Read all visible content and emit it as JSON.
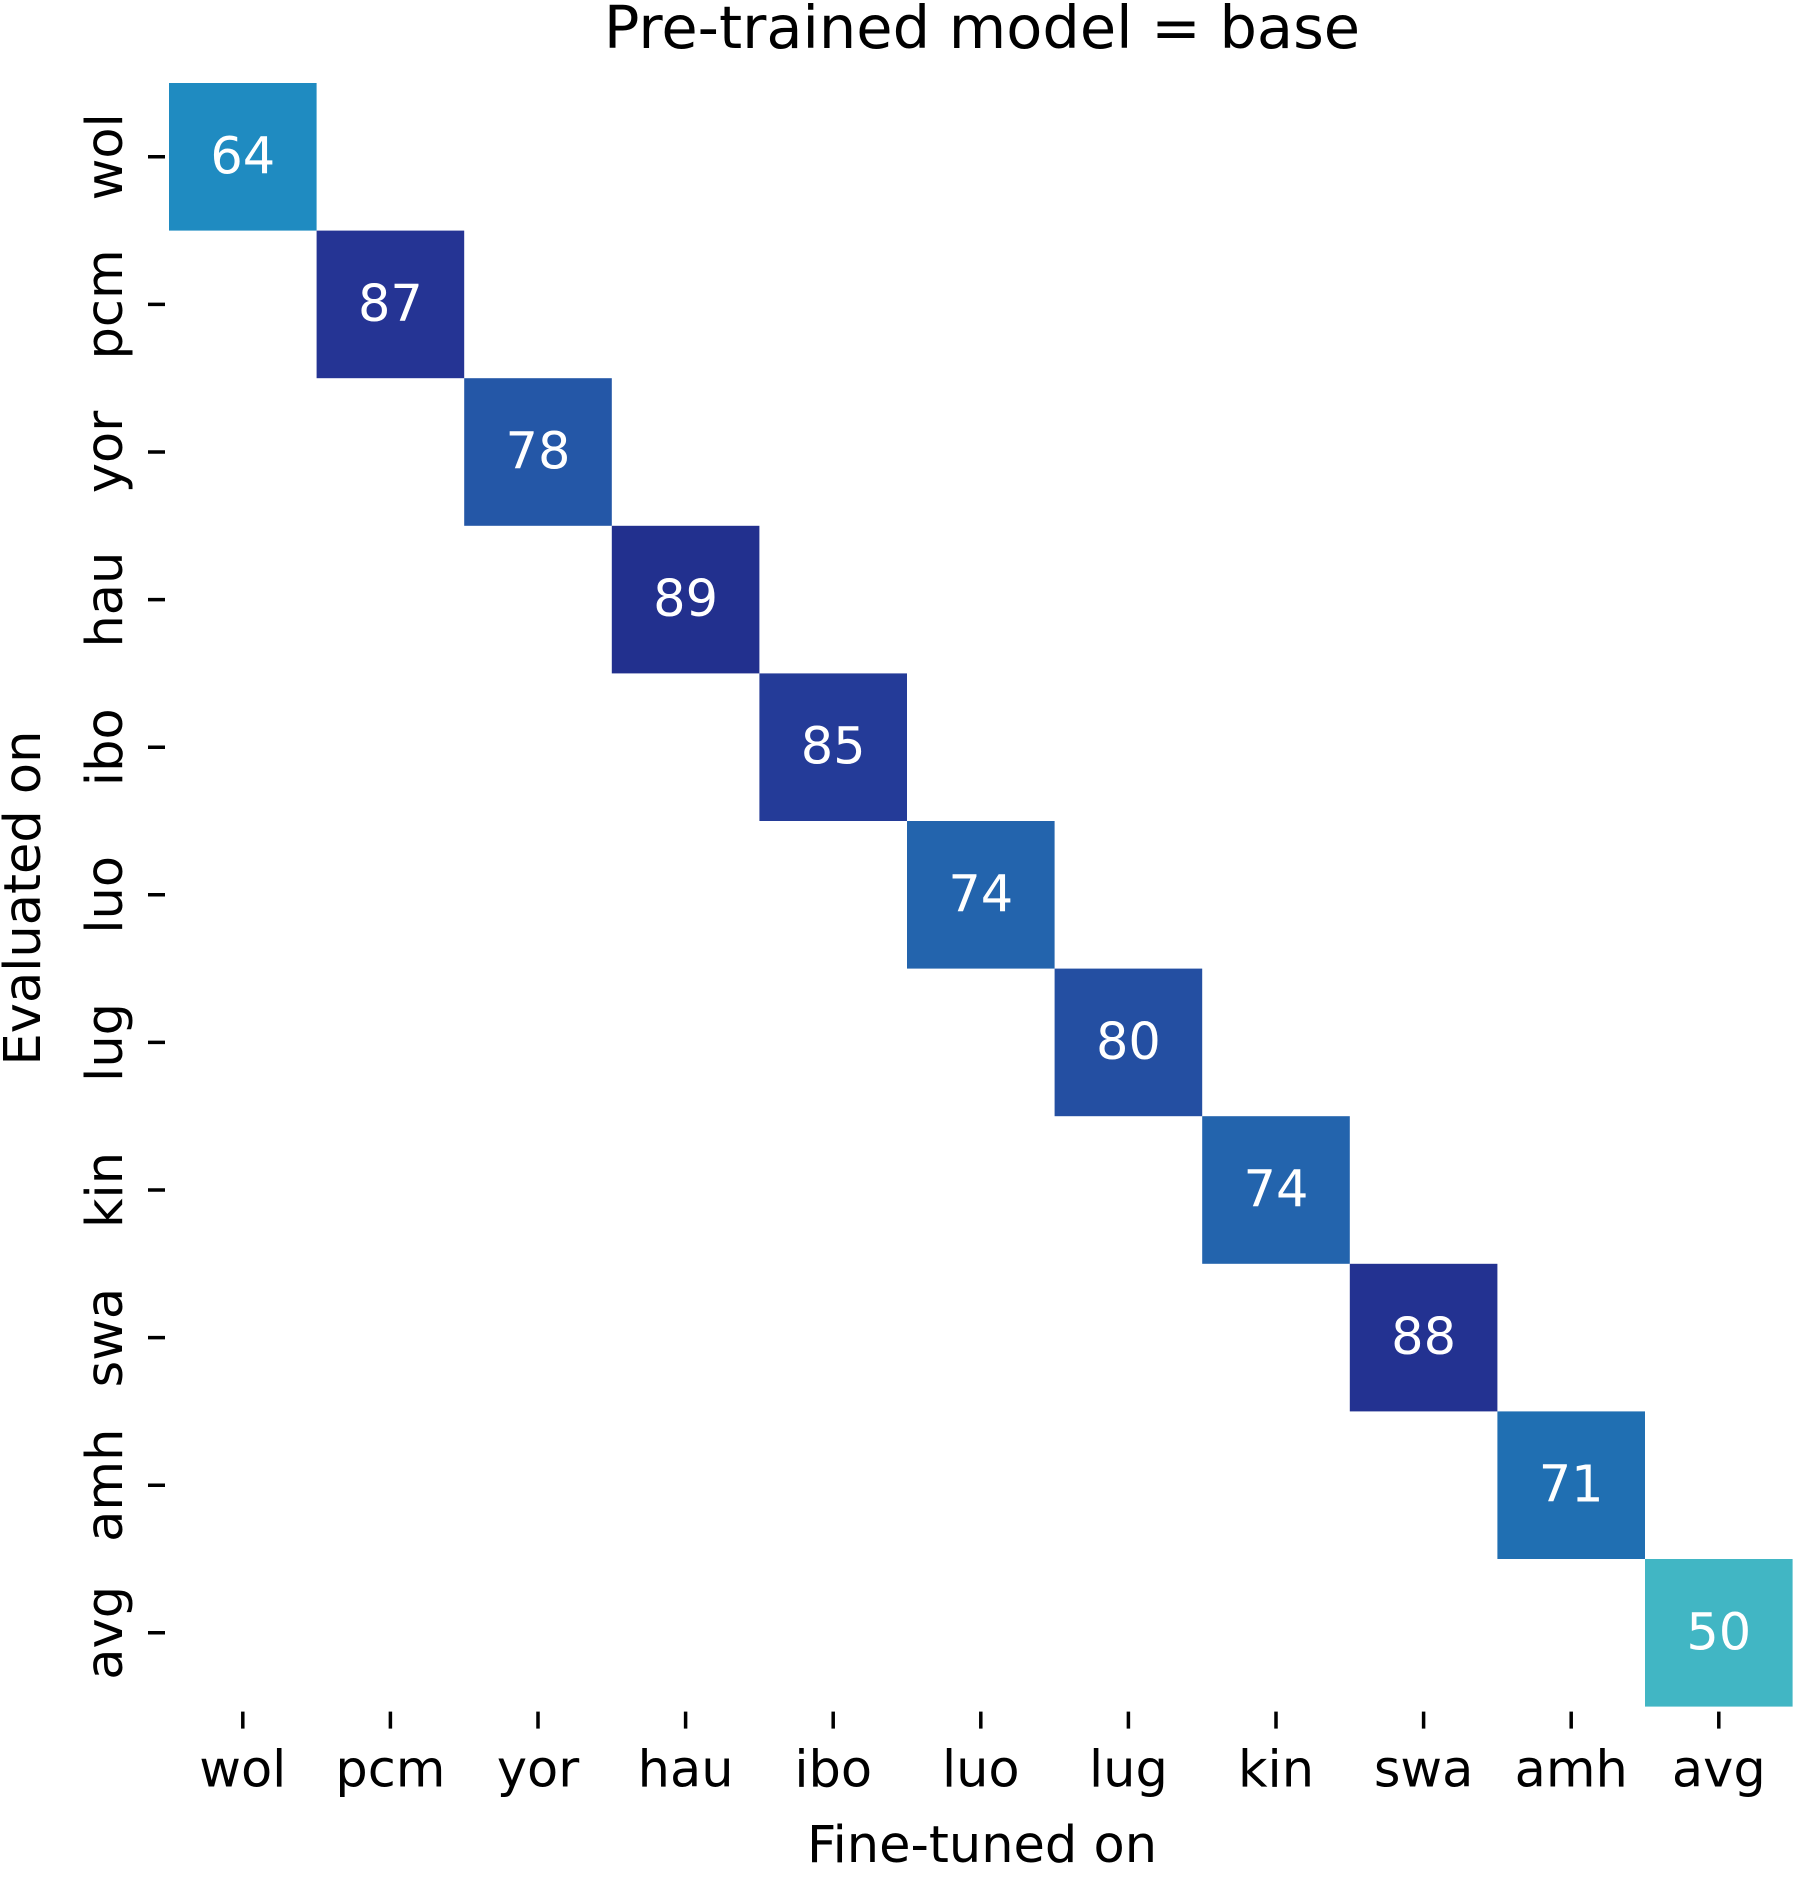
{
  "chart_data": {
    "type": "heatmap",
    "title": "Pre-trained model = base",
    "xlabel": "Fine-tuned on",
    "ylabel": "Evaluated on",
    "x_categories": [
      "wol",
      "pcm",
      "yor",
      "hau",
      "ibo",
      "luo",
      "lug",
      "kin",
      "swa",
      "amh",
      "avg"
    ],
    "y_categories": [
      "wol",
      "pcm",
      "yor",
      "hau",
      "ibo",
      "luo",
      "lug",
      "kin",
      "swa",
      "amh",
      "avg"
    ],
    "cells": [
      {
        "x": "wol",
        "y": "wol",
        "value": 64,
        "color": "#1f8bc1"
      },
      {
        "x": "pcm",
        "y": "pcm",
        "value": 87,
        "color": "#253494"
      },
      {
        "x": "yor",
        "y": "yor",
        "value": 78,
        "color": "#2457a7"
      },
      {
        "x": "hau",
        "y": "hau",
        "value": 89,
        "color": "#22308e"
      },
      {
        "x": "ibo",
        "y": "ibo",
        "value": 85,
        "color": "#243b98"
      },
      {
        "x": "luo",
        "y": "luo",
        "value": 74,
        "color": "#2364ad"
      },
      {
        "x": "lug",
        "y": "lug",
        "value": 80,
        "color": "#244fa2"
      },
      {
        "x": "kin",
        "y": "kin",
        "value": 74,
        "color": "#2364ad"
      },
      {
        "x": "swa",
        "y": "swa",
        "value": 88,
        "color": "#233291"
      },
      {
        "x": "amh",
        "y": "amh",
        "value": 71,
        "color": "#206fb2"
      },
      {
        "x": "avg",
        "y": "avg",
        "value": 50,
        "color": "#41b6c4"
      }
    ],
    "colormap": "YlGnBu",
    "colorbar": false,
    "grid": false
  }
}
